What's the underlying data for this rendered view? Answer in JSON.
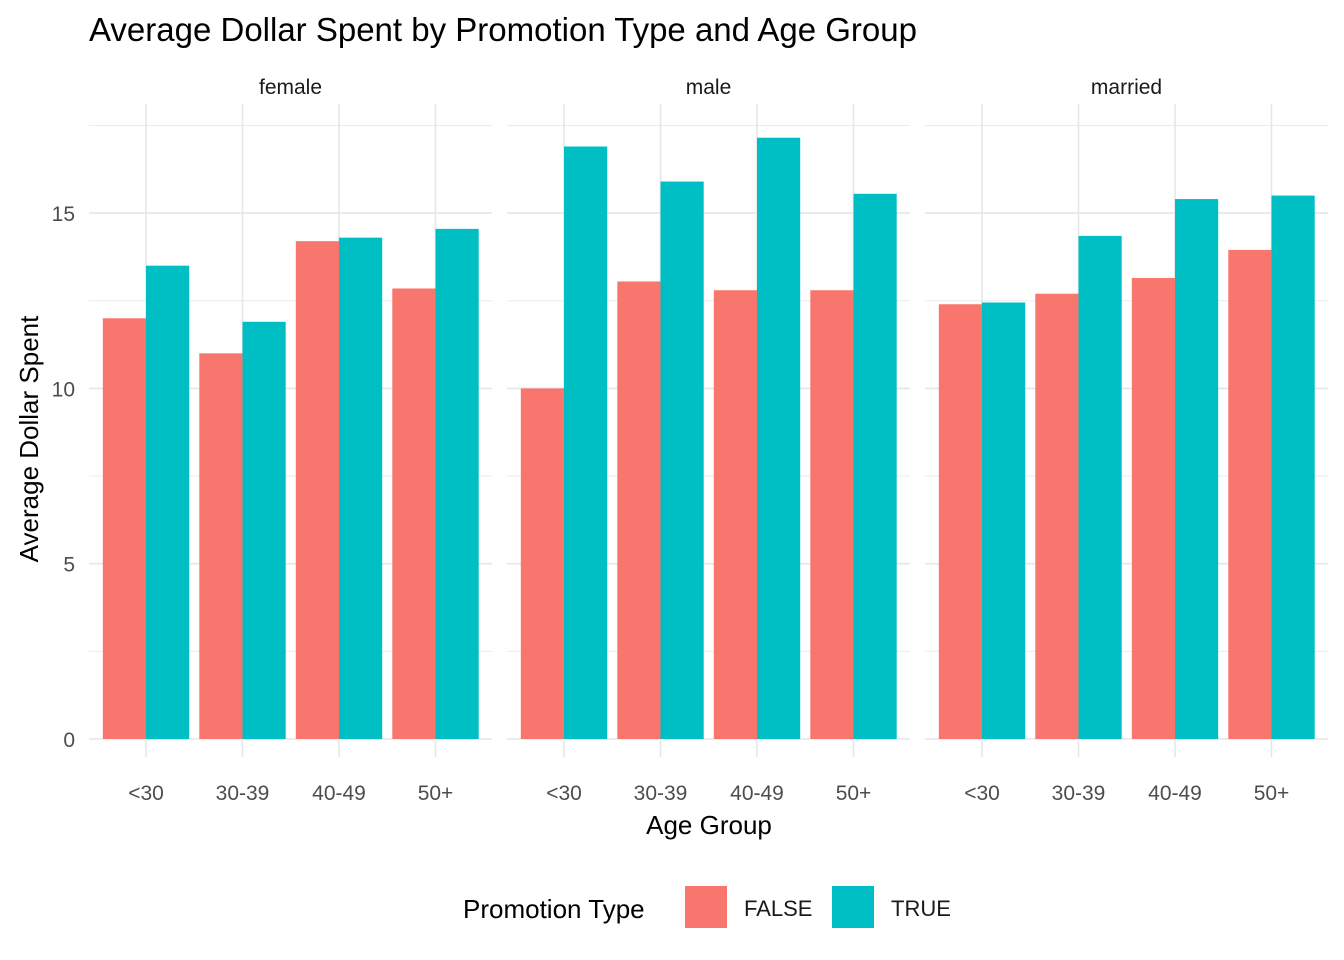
{
  "chart_data": {
    "type": "bar",
    "title": "Average Dollar Spent by Promotion Type and Age Group",
    "xlabel": "Age Group",
    "ylabel": "Average Dollar Spent",
    "ylim": [
      0,
      17.5
    ],
    "yticks": [
      0,
      5,
      10,
      15
    ],
    "yticklabels": [
      "0",
      "5",
      "10",
      "15"
    ],
    "grid": true,
    "categories": [
      "<30",
      "30-39",
      "40-49",
      "50+"
    ],
    "legend": {
      "title": "Promotion Type",
      "position": "bottom",
      "entries": [
        "FALSE",
        "TRUE"
      ]
    },
    "colors": {
      "FALSE": "#F8766D",
      "TRUE": "#00BFC4"
    },
    "facets": [
      {
        "name": "female",
        "series": [
          {
            "name": "FALSE",
            "values": [
              12.0,
              11.0,
              14.2,
              12.85
            ]
          },
          {
            "name": "TRUE",
            "values": [
              13.5,
              11.9,
              14.3,
              14.55
            ]
          }
        ]
      },
      {
        "name": "male",
        "series": [
          {
            "name": "FALSE",
            "values": [
              10.0,
              13.05,
              12.8,
              12.8
            ]
          },
          {
            "name": "TRUE",
            "values": [
              16.9,
              15.9,
              17.15,
              15.55
            ]
          }
        ]
      },
      {
        "name": "married",
        "series": [
          {
            "name": "FALSE",
            "values": [
              12.4,
              12.7,
              13.15,
              13.95
            ]
          },
          {
            "name": "TRUE",
            "values": [
              12.45,
              14.35,
              15.4,
              15.5
            ]
          }
        ]
      }
    ]
  }
}
